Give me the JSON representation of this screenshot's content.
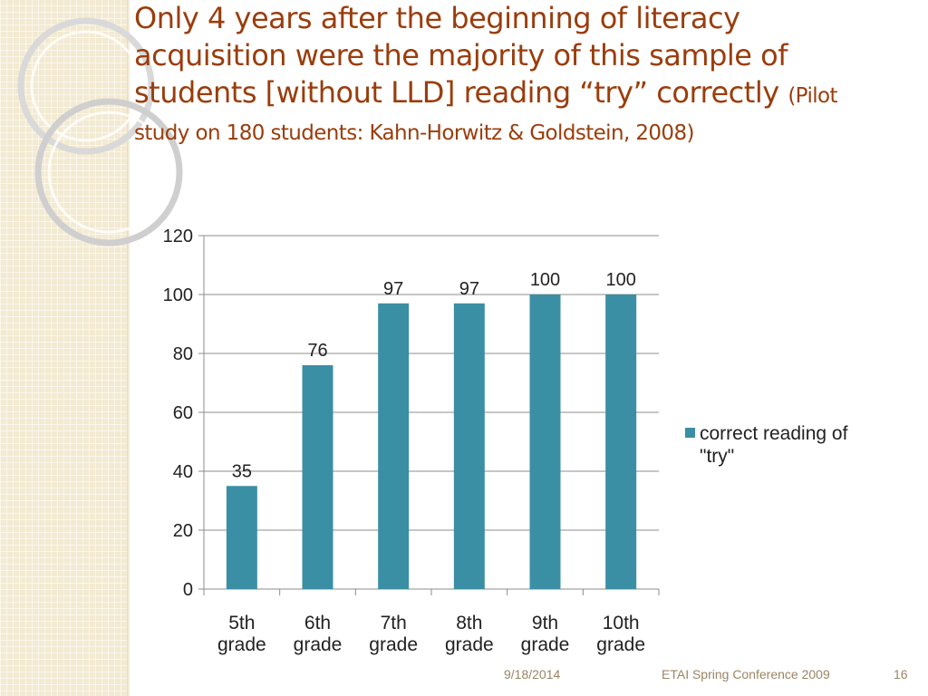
{
  "slide": {
    "title_main": "Only 4 years after the beginning of literacy acquisition were the majority of this sample of students [without LLD] reading “try” correctly",
    "title_note": "(Pilot study on 180 students: Kahn-Horwitz & Goldstein, 2008)",
    "footer": {
      "date": "9/18/2014",
      "conference": "ETAI Spring Conference 2009",
      "page": "16"
    },
    "colors": {
      "title": "#9a3d0c",
      "band": "#f3ead2",
      "bar": "#3a8fa4"
    }
  },
  "chart_data": {
    "type": "bar",
    "categories": [
      "5th grade",
      "6th grade",
      "7th grade",
      "8th grade",
      "9th grade",
      "10th grade"
    ],
    "series": [
      {
        "name": "correct reading of \"try\"",
        "values": [
          35,
          76,
          97,
          97,
          100,
          100
        ],
        "color": "#3a8fa4"
      }
    ],
    "ylim": [
      0,
      120
    ],
    "yticks": [
      0,
      20,
      40,
      60,
      80,
      100,
      120
    ],
    "data_labels": true,
    "grid": true,
    "legend": "right"
  }
}
